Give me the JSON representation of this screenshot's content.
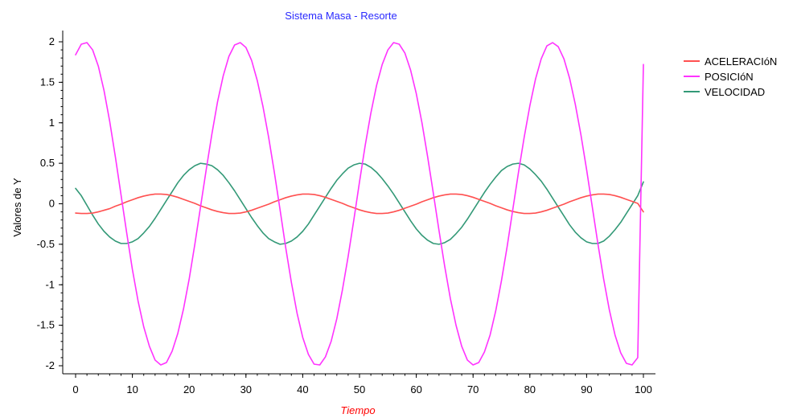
{
  "colors": {
    "title": "#2a2aff",
    "xlabel": "#ff0000",
    "ylabel": "#000000",
    "axis": "#000000",
    "background": "#ffffff"
  },
  "chart_data": {
    "type": "line",
    "title": "Sistema Masa - Resorte",
    "xlabel": "Tiempo",
    "ylabel": "Valores de Y",
    "xlim": [
      0,
      100
    ],
    "ylim": [
      -2,
      2
    ],
    "x_ticks": [
      0,
      10,
      20,
      30,
      40,
      50,
      60,
      70,
      80,
      90,
      100
    ],
    "x_tick_labels": [
      "0",
      "10",
      "20",
      "30",
      "40",
      "50",
      "60",
      "70",
      "80",
      "90",
      "100"
    ],
    "y_ticks": [
      2,
      1.5,
      1,
      0.5,
      0,
      -0.5,
      -1,
      -1.5,
      -2
    ],
    "y_tick_labels": [
      "2",
      "1.5",
      "1",
      "0.5",
      "0",
      "-0.5",
      "-1",
      "-1.5",
      "-2"
    ],
    "grid": false,
    "legend_position": "top-right",
    "x": [
      0,
      1,
      2,
      3,
      4,
      5,
      6,
      7,
      8,
      9,
      10,
      11,
      12,
      13,
      14,
      15,
      16,
      17,
      18,
      19,
      20,
      21,
      22,
      23,
      24,
      25,
      26,
      27,
      28,
      29,
      30,
      31,
      32,
      33,
      34,
      35,
      36,
      37,
      38,
      39,
      40,
      41,
      42,
      43,
      44,
      45,
      46,
      47,
      48,
      49,
      50,
      51,
      52,
      53,
      54,
      55,
      56,
      57,
      58,
      59,
      60,
      61,
      62,
      63,
      64,
      65,
      66,
      67,
      68,
      69,
      70,
      71,
      72,
      73,
      74,
      75,
      76,
      77,
      78,
      79,
      80,
      81,
      82,
      83,
      84,
      85,
      86,
      87,
      88,
      89,
      90,
      91,
      92,
      93,
      94,
      95,
      96,
      97,
      98,
      99,
      100
    ],
    "series": [
      {
        "name": "ACELERACIóN",
        "color": "#ff5050",
        "values": [
          -0.115,
          -0.12,
          -0.12,
          -0.115,
          -0.1,
          -0.08,
          -0.06,
          -0.03,
          -0.005,
          0.025,
          0.05,
          0.075,
          0.095,
          0.11,
          0.12,
          0.12,
          0.115,
          0.1,
          0.08,
          0.055,
          0.03,
          0.005,
          -0.025,
          -0.05,
          -0.075,
          -0.095,
          -0.11,
          -0.12,
          -0.12,
          -0.115,
          -0.1,
          -0.08,
          -0.055,
          -0.03,
          -0.005,
          0.025,
          0.05,
          0.075,
          0.095,
          0.11,
          0.12,
          0.12,
          0.115,
          0.1,
          0.08,
          0.055,
          0.03,
          0.005,
          -0.025,
          -0.05,
          -0.075,
          -0.095,
          -0.11,
          -0.12,
          -0.12,
          -0.115,
          -0.1,
          -0.08,
          -0.055,
          -0.03,
          -0.005,
          0.025,
          0.05,
          0.075,
          0.095,
          0.11,
          0.12,
          0.12,
          0.115,
          0.1,
          0.08,
          0.055,
          0.03,
          0.005,
          -0.025,
          -0.05,
          -0.075,
          -0.095,
          -0.11,
          -0.12,
          -0.12,
          -0.115,
          -0.1,
          -0.08,
          -0.055,
          -0.03,
          -0.005,
          0.025,
          0.05,
          0.075,
          0.095,
          0.11,
          0.12,
          0.12,
          0.115,
          0.1,
          0.08,
          0.055,
          0.03,
          0.005,
          -0.1
        ]
      },
      {
        "name": "POSICIóN",
        "color": "#ff33ff",
        "values": [
          1.84,
          1.97,
          1.99,
          1.9,
          1.7,
          1.4,
          1.02,
          0.58,
          0.11,
          -0.36,
          -0.81,
          -1.2,
          -1.52,
          -1.76,
          -1.93,
          -1.99,
          -1.96,
          -1.82,
          -1.6,
          -1.3,
          -0.93,
          -0.5,
          -0.04,
          0.42,
          0.86,
          1.26,
          1.58,
          1.82,
          1.96,
          1.99,
          1.93,
          1.77,
          1.52,
          1.2,
          0.82,
          0.39,
          -0.07,
          -0.54,
          -0.97,
          -1.35,
          -1.65,
          -1.86,
          -1.98,
          -1.99,
          -1.89,
          -1.7,
          -1.42,
          -1.06,
          -0.65,
          -0.2,
          0.27,
          0.72,
          1.12,
          1.46,
          1.72,
          1.9,
          1.99,
          1.97,
          1.86,
          1.65,
          1.36,
          1.0,
          0.58,
          0.13,
          -0.33,
          -0.77,
          -1.17,
          -1.5,
          -1.76,
          -1.93,
          -1.99,
          -1.96,
          -1.83,
          -1.62,
          -1.32,
          -0.95,
          -0.53,
          -0.07,
          0.39,
          0.82,
          1.21,
          1.54,
          1.79,
          1.95,
          1.99,
          1.94,
          1.79,
          1.55,
          1.23,
          0.85,
          0.42,
          -0.04,
          -0.5,
          -0.93,
          -1.31,
          -1.62,
          -1.84,
          -1.97,
          -1.99,
          -1.9,
          1.72
        ]
      },
      {
        "name": "VELOCIDAD",
        "color": "#339977",
        "values": [
          0.19,
          0.1,
          -0.02,
          -0.14,
          -0.25,
          -0.34,
          -0.41,
          -0.46,
          -0.49,
          -0.49,
          -0.47,
          -0.43,
          -0.36,
          -0.28,
          -0.18,
          -0.07,
          0.04,
          0.15,
          0.26,
          0.35,
          0.42,
          0.47,
          0.5,
          0.49,
          0.47,
          0.42,
          0.35,
          0.26,
          0.16,
          0.05,
          -0.06,
          -0.17,
          -0.27,
          -0.36,
          -0.43,
          -0.47,
          -0.5,
          -0.49,
          -0.46,
          -0.41,
          -0.34,
          -0.25,
          -0.14,
          -0.03,
          0.08,
          0.19,
          0.29,
          0.37,
          0.44,
          0.48,
          0.5,
          0.49,
          0.45,
          0.39,
          0.31,
          0.22,
          0.12,
          0.01,
          -0.1,
          -0.21,
          -0.31,
          -0.39,
          -0.45,
          -0.49,
          -0.5,
          -0.48,
          -0.44,
          -0.37,
          -0.29,
          -0.19,
          -0.08,
          0.03,
          0.14,
          0.24,
          0.33,
          0.41,
          0.46,
          0.49,
          0.5,
          0.48,
          0.43,
          0.36,
          0.28,
          0.18,
          0.07,
          -0.04,
          -0.15,
          -0.26,
          -0.35,
          -0.42,
          -0.47,
          -0.49,
          -0.49,
          -0.46,
          -0.4,
          -0.32,
          -0.23,
          -0.12,
          -0.01,
          0.1,
          0.27
        ]
      }
    ]
  }
}
